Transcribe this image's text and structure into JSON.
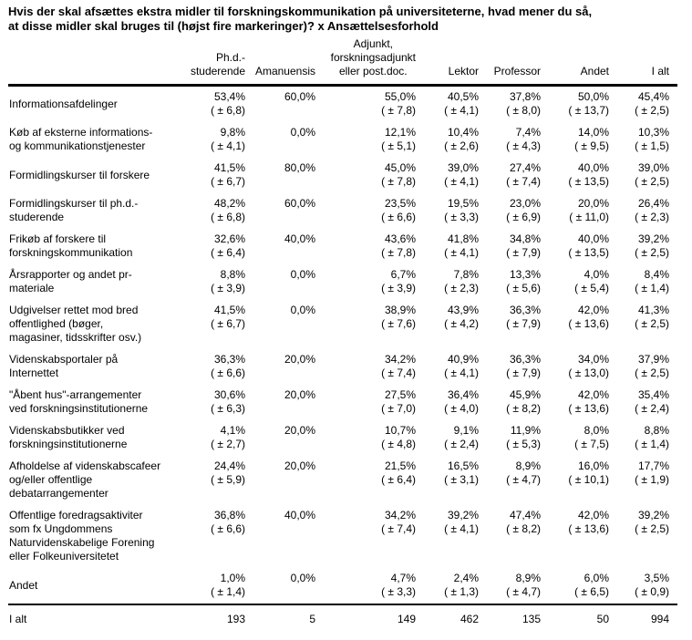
{
  "colors": {
    "text": "#000000",
    "background": "#ffffff",
    "rule": "#000000"
  },
  "title": "Hvis der skal afsættes ekstra midler til forskningskommunikation på universiteterne, hvad mener du så,\nat disse midler skal bruges til (højst fire markeringer)? x Ansættelsesforhold",
  "table": {
    "columns": [
      {
        "label": "Ph.d.-\nstuderende"
      },
      {
        "label": "Amanuensis"
      },
      {
        "label": "Adjunkt,\nforskningsadjunkt\neller post.doc."
      },
      {
        "label": "Lektor"
      },
      {
        "label": "Professor"
      },
      {
        "label": "Andet"
      },
      {
        "label": "I alt"
      }
    ],
    "rows": [
      {
        "label": "Informationsafdelinger",
        "cells": [
          {
            "pct": "53,4%",
            "ci": "( ± 6,8)"
          },
          {
            "pct": "60,0%",
            "ci": ""
          },
          {
            "pct": "55,0%",
            "ci": "( ± 7,8)"
          },
          {
            "pct": "40,5%",
            "ci": "( ± 4,1)"
          },
          {
            "pct": "37,8%",
            "ci": "( ± 8,0)"
          },
          {
            "pct": "50,0%",
            "ci": "( ± 13,7)"
          },
          {
            "pct": "45,4%",
            "ci": "( ± 2,5)"
          }
        ]
      },
      {
        "label": "Køb af eksterne informations-\nog kommunikationstjenester",
        "cells": [
          {
            "pct": "9,8%",
            "ci": "( ± 4,1)"
          },
          {
            "pct": "0,0%",
            "ci": ""
          },
          {
            "pct": "12,1%",
            "ci": "( ± 5,1)"
          },
          {
            "pct": "10,4%",
            "ci": "( ± 2,6)"
          },
          {
            "pct": "7,4%",
            "ci": "( ± 4,3)"
          },
          {
            "pct": "14,0%",
            "ci": "( ± 9,5)"
          },
          {
            "pct": "10,3%",
            "ci": "( ± 1,5)"
          }
        ]
      },
      {
        "label": "Formidlingskurser til forskere",
        "cells": [
          {
            "pct": "41,5%",
            "ci": "( ± 6,7)"
          },
          {
            "pct": "80,0%",
            "ci": ""
          },
          {
            "pct": "45,0%",
            "ci": "( ± 7,8)"
          },
          {
            "pct": "39,0%",
            "ci": "( ± 4,1)"
          },
          {
            "pct": "27,4%",
            "ci": "( ± 7,4)"
          },
          {
            "pct": "40,0%",
            "ci": "( ± 13,5)"
          },
          {
            "pct": "39,0%",
            "ci": "( ± 2,5)"
          }
        ]
      },
      {
        "label": "Formidlingskurser til ph.d.-\nstuderende",
        "cells": [
          {
            "pct": "48,2%",
            "ci": "( ± 6,8)"
          },
          {
            "pct": "60,0%",
            "ci": ""
          },
          {
            "pct": "23,5%",
            "ci": "( ± 6,6)"
          },
          {
            "pct": "19,5%",
            "ci": "( ± 3,3)"
          },
          {
            "pct": "23,0%",
            "ci": "( ± 6,9)"
          },
          {
            "pct": "20,0%",
            "ci": "( ± 11,0)"
          },
          {
            "pct": "26,4%",
            "ci": "( ± 2,3)"
          }
        ]
      },
      {
        "label": "Frikøb af forskere til\nforskningskommunikation",
        "cells": [
          {
            "pct": "32,6%",
            "ci": "( ± 6,4)"
          },
          {
            "pct": "40,0%",
            "ci": ""
          },
          {
            "pct": "43,6%",
            "ci": "( ± 7,8)"
          },
          {
            "pct": "41,8%",
            "ci": "( ± 4,1)"
          },
          {
            "pct": "34,8%",
            "ci": "( ± 7,9)"
          },
          {
            "pct": "40,0%",
            "ci": "( ± 13,5)"
          },
          {
            "pct": "39,2%",
            "ci": "( ± 2,5)"
          }
        ]
      },
      {
        "label": "Årsrapporter og andet pr-\nmateriale",
        "cells": [
          {
            "pct": "8,8%",
            "ci": "( ± 3,9)"
          },
          {
            "pct": "0,0%",
            "ci": ""
          },
          {
            "pct": "6,7%",
            "ci": "( ± 3,9)"
          },
          {
            "pct": "7,8%",
            "ci": "( ± 2,3)"
          },
          {
            "pct": "13,3%",
            "ci": "( ± 5,6)"
          },
          {
            "pct": "4,0%",
            "ci": "( ± 5,4)"
          },
          {
            "pct": "8,4%",
            "ci": "( ± 1,4)"
          }
        ]
      },
      {
        "label": "Udgivelser rettet mod bred\noffentlighed (bøger,\nmagasiner, tidsskrifter osv.)",
        "cells": [
          {
            "pct": "41,5%",
            "ci": "( ± 6,7)"
          },
          {
            "pct": "0,0%",
            "ci": ""
          },
          {
            "pct": "38,9%",
            "ci": "( ± 7,6)"
          },
          {
            "pct": "43,9%",
            "ci": "( ± 4,2)"
          },
          {
            "pct": "36,3%",
            "ci": "( ± 7,9)"
          },
          {
            "pct": "42,0%",
            "ci": "( ± 13,6)"
          },
          {
            "pct": "41,3%",
            "ci": "( ± 2,5)"
          }
        ]
      },
      {
        "label": "Videnskabsportaler på\nInternettet",
        "cells": [
          {
            "pct": "36,3%",
            "ci": "( ± 6,6)"
          },
          {
            "pct": "20,0%",
            "ci": ""
          },
          {
            "pct": "34,2%",
            "ci": "( ± 7,4)"
          },
          {
            "pct": "40,9%",
            "ci": "( ± 4,1)"
          },
          {
            "pct": "36,3%",
            "ci": "( ± 7,9)"
          },
          {
            "pct": "34,0%",
            "ci": "( ± 13,0)"
          },
          {
            "pct": "37,9%",
            "ci": "( ± 2,5)"
          }
        ]
      },
      {
        "label": "\"Åbent hus\"-arrangementer\nved forskningsinstitutionerne",
        "cells": [
          {
            "pct": "30,6%",
            "ci": "( ± 6,3)"
          },
          {
            "pct": "20,0%",
            "ci": ""
          },
          {
            "pct": "27,5%",
            "ci": "( ± 7,0)"
          },
          {
            "pct": "36,4%",
            "ci": "( ± 4,0)"
          },
          {
            "pct": "45,9%",
            "ci": "( ± 8,2)"
          },
          {
            "pct": "42,0%",
            "ci": "( ± 13,6)"
          },
          {
            "pct": "35,4%",
            "ci": "( ± 2,4)"
          }
        ]
      },
      {
        "label": "Videnskabsbutikker ved\nforskningsinstitutionerne",
        "cells": [
          {
            "pct": "4,1%",
            "ci": "( ± 2,7)"
          },
          {
            "pct": "20,0%",
            "ci": ""
          },
          {
            "pct": "10,7%",
            "ci": "( ± 4,8)"
          },
          {
            "pct": "9,1%",
            "ci": "( ± 2,4)"
          },
          {
            "pct": "11,9%",
            "ci": "( ± 5,3)"
          },
          {
            "pct": "8,0%",
            "ci": "( ± 7,5)"
          },
          {
            "pct": "8,8%",
            "ci": "( ± 1,4)"
          }
        ]
      },
      {
        "label": "Afholdelse af videnskabscafeer\nog/eller offentlige\ndebatarrangementer",
        "cells": [
          {
            "pct": "24,4%",
            "ci": "( ± 5,9)"
          },
          {
            "pct": "20,0%",
            "ci": ""
          },
          {
            "pct": "21,5%",
            "ci": "( ± 6,4)"
          },
          {
            "pct": "16,5%",
            "ci": "( ± 3,1)"
          },
          {
            "pct": "8,9%",
            "ci": "( ± 4,7)"
          },
          {
            "pct": "16,0%",
            "ci": "( ± 10,1)"
          },
          {
            "pct": "17,7%",
            "ci": "( ± 1,9)"
          }
        ]
      },
      {
        "label": "Offentlige foredragsaktiviter\nsom fx Ungdommens\nNaturvidenskabelige Forening\neller Folkeuniversitetet",
        "cells": [
          {
            "pct": "36,8%",
            "ci": "( ± 6,6)"
          },
          {
            "pct": "40,0%",
            "ci": ""
          },
          {
            "pct": "34,2%",
            "ci": "( ± 7,4)"
          },
          {
            "pct": "39,2%",
            "ci": "( ± 4,1)"
          },
          {
            "pct": "47,4%",
            "ci": "( ± 8,2)"
          },
          {
            "pct": "42,0%",
            "ci": "( ± 13,6)"
          },
          {
            "pct": "39,2%",
            "ci": "( ± 2,5)"
          }
        ]
      },
      {
        "label": "Andet",
        "cells": [
          {
            "pct": "1,0%",
            "ci": "( ± 1,4)"
          },
          {
            "pct": "0,0%",
            "ci": ""
          },
          {
            "pct": "4,7%",
            "ci": "( ± 3,3)"
          },
          {
            "pct": "2,4%",
            "ci": "( ± 1,3)"
          },
          {
            "pct": "8,9%",
            "ci": "( ± 4,7)"
          },
          {
            "pct": "6,0%",
            "ci": "( ± 6,5)"
          },
          {
            "pct": "3,5%",
            "ci": "( ± 0,9)"
          }
        ]
      }
    ],
    "footer": {
      "label": "I alt",
      "values": [
        "193",
        "5",
        "149",
        "462",
        "135",
        "50",
        "994"
      ]
    }
  }
}
